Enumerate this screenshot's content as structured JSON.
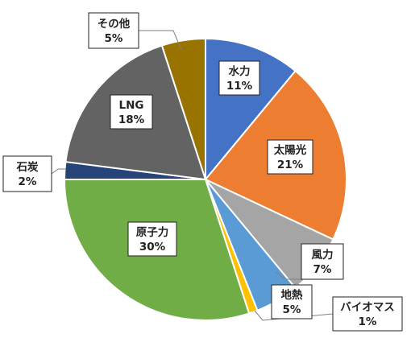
{
  "chart_data": {
    "type": "pie",
    "start_angle_deg": 0,
    "direction": "clockwise",
    "slices": [
      {
        "name": "水力",
        "value": 11,
        "label": "11%",
        "color": "#4472C4"
      },
      {
        "name": "太陽光",
        "value": 21,
        "label": "21%",
        "color": "#ED7D31"
      },
      {
        "name": "風力",
        "value": 7,
        "label": "7%",
        "color": "#A5A5A5"
      },
      {
        "name": "地熱",
        "value": 5,
        "label": "5%",
        "color": "#5B9BD5"
      },
      {
        "name": "バイオマス",
        "value": 1,
        "label": "1%",
        "color": "#FFC000"
      },
      {
        "name": "原子力",
        "value": 30,
        "label": "30%",
        "color": "#70AD47"
      },
      {
        "name": "石炭",
        "value": 2,
        "label": "2%",
        "color": "#264478"
      },
      {
        "name": "LNG",
        "value": 18,
        "label": "18%",
        "color": "#636363"
      },
      {
        "name": "その他",
        "value": 5,
        "label": "5%",
        "color": "#997300"
      }
    ]
  }
}
